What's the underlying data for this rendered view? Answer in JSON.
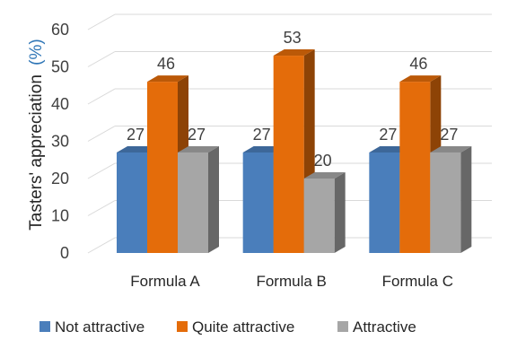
{
  "chart_data": {
    "type": "bar",
    "categories": [
      "Formula A",
      "Formula B",
      "Formula C"
    ],
    "series": [
      {
        "name": "Not attractive",
        "values": [
          27,
          27,
          27
        ],
        "color": "#4a7ebb"
      },
      {
        "name": "Quite attractive",
        "values": [
          46,
          53,
          46
        ],
        "color": "#e46c0a"
      },
      {
        "name": "Attractive",
        "values": [
          27,
          20,
          27
        ],
        "color": "#a6a6a6"
      }
    ],
    "ylabel_main": "Tasters' appreciation",
    "ylabel_unit": "(%)",
    "ylabel_unit_color": "#2e75b6",
    "ylim": [
      0,
      60
    ],
    "yticks": [
      0,
      10,
      20,
      30,
      40,
      50,
      60
    ],
    "grid": true,
    "legend_position": "bottom",
    "style": "3d-clustered"
  }
}
